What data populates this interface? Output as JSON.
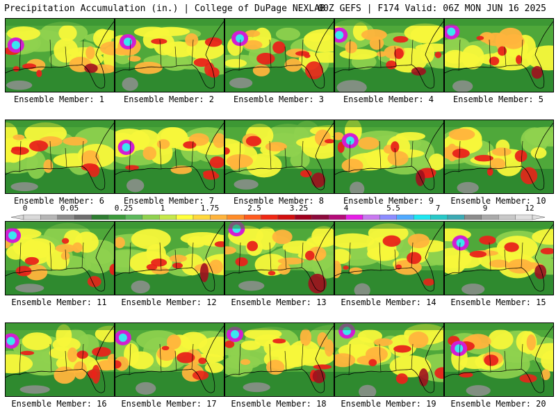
{
  "header": {
    "left": "Precipitation Accumulation (in.) | College of DuPage NEXLAB",
    "right": "00Z GEFS | F174 Valid: 06Z MON JUN 16 2025"
  },
  "panels": [
    {
      "label": "Ensemble Member: 1"
    },
    {
      "label": "Ensemble Member: 2"
    },
    {
      "label": "Ensemble Member: 3"
    },
    {
      "label": "Ensemble Member: 4"
    },
    {
      "label": "Ensemble Member: 5"
    },
    {
      "label": "Ensemble Member: 6"
    },
    {
      "label": "Ensemble Member: 7"
    },
    {
      "label": "Ensemble Member: 8"
    },
    {
      "label": "Ensemble Member: 9"
    },
    {
      "label": "Ensemble Member: 10"
    },
    {
      "label": "Ensemble Member: 11"
    },
    {
      "label": "Ensemble Member: 12"
    },
    {
      "label": "Ensemble Member: 13"
    },
    {
      "label": "Ensemble Member: 14"
    },
    {
      "label": "Ensemble Member: 15"
    },
    {
      "label": "Ensemble Member: 16"
    },
    {
      "label": "Ensemble Member: 17"
    },
    {
      "label": "Ensemble Member: 18"
    },
    {
      "label": "Ensemble Member: 19"
    },
    {
      "label": "Ensemble Member: 20"
    }
  ],
  "colorbar": {
    "tick_labels": [
      "0",
      "0.05",
      "0.25",
      "1",
      "1.75",
      "2.5",
      "3.25",
      "4",
      "5.5",
      "7",
      "9",
      "12"
    ],
    "colors": [
      "#d9d9d9",
      "#b5b5b5",
      "#8c8c8c",
      "#6e6e6e",
      "#2e7d32",
      "#3c9a3c",
      "#5cb85c",
      "#8fd14f",
      "#c5e84a",
      "#ffff3c",
      "#ffd83c",
      "#ffb43c",
      "#ff8c28",
      "#ff5a1e",
      "#f02814",
      "#d20f0f",
      "#a0001e",
      "#8c0a3c",
      "#b40a78",
      "#e61ee6",
      "#c878f0",
      "#8c8cff",
      "#50aaff",
      "#1ee6f0",
      "#28c8c8",
      "#3caab4",
      "#8c8c8c",
      "#aaaaaa",
      "#c8c8c8",
      "#e0e0e0"
    ]
  },
  "map_colors": {
    "gray": "#8f8f8f",
    "dark_green": "#2f8a2f",
    "green": "#4fa83a",
    "light_green": "#8fd14f",
    "yellow": "#f7f73a",
    "orange": "#ffb43c",
    "red": "#e8231a",
    "dark_red": "#a0101e",
    "magenta": "#d21ed2",
    "cyan": "#3ce6f0"
  }
}
